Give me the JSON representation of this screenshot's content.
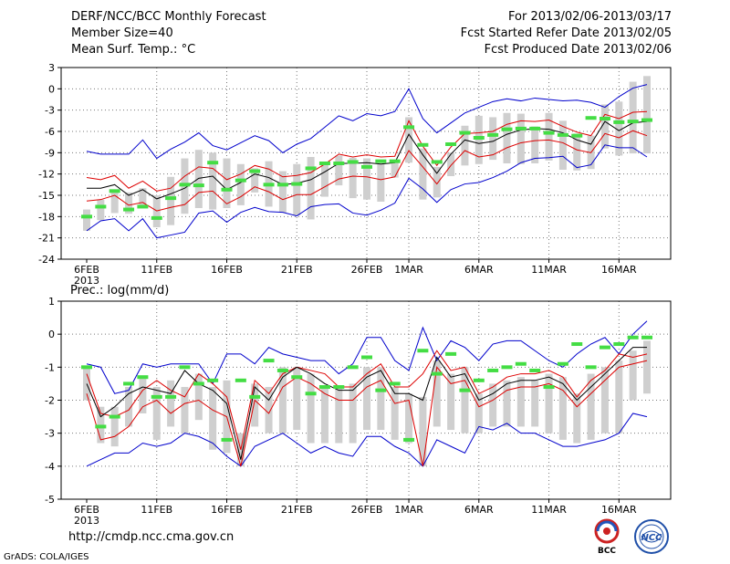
{
  "header": {
    "title": "DERF/NCC/BCC Monthly Forecast",
    "member_size": "Member Size=40",
    "variable": "Mean Surf. Temp.: °C",
    "period": "For 2013/02/06-2013/03/17",
    "start_date": "Fcst Started Refer Date 2013/02/05",
    "produced_date": "Fcst Produced Date 2013/02/06"
  },
  "footer": {
    "url": "http://cmdp.ncc.cma.gov.cn",
    "credit": "GrADS: COLA/IGES",
    "logo_bcc": "BCC",
    "logo_ncc": "NCC"
  },
  "colors": {
    "median": "#000000",
    "band": "#dd0000",
    "envelope": "#0000cc",
    "box": "#cfcfcf",
    "obs": "#44dd44",
    "grid": "#777777"
  },
  "chart_data": [
    {
      "type": "line",
      "title": "Mean Surf. Temp.: °C",
      "ylim": [
        -24,
        3
      ],
      "yticks": [
        3,
        0,
        -3,
        -6,
        -9,
        -12,
        -15,
        -18,
        -21,
        -24
      ],
      "xticks": [
        {
          "day": 0,
          "label": "6FEB",
          "sub": "2013"
        },
        {
          "day": 5,
          "label": "11FEB"
        },
        {
          "day": 10,
          "label": "16FEB"
        },
        {
          "day": 15,
          "label": "21FEB"
        },
        {
          "day": 20,
          "label": "26FEB"
        },
        {
          "day": 23,
          "label": "1MAR"
        },
        {
          "day": 28,
          "label": "6MAR"
        },
        {
          "day": 33,
          "label": "11MAR"
        },
        {
          "day": 38,
          "label": "16MAR"
        }
      ],
      "series": [
        {
          "name": "max",
          "values": [
            -8.8,
            -9.2,
            -9.2,
            -9.2,
            -7.2,
            -9.8,
            -8.5,
            -7.5,
            -6.2,
            -8.0,
            -8.6,
            -7.6,
            -6.6,
            -7.3,
            -9.0,
            -7.8,
            -7.0,
            -5.4,
            -3.8,
            -4.5,
            -3.5,
            -3.8,
            -3.2,
            0.0,
            -4.2,
            -6.2,
            -4.8,
            -3.4,
            -2.6,
            -1.8,
            -1.4,
            -1.7,
            -1.3,
            -1.5,
            -1.7,
            -1.6,
            -1.9,
            -2.6,
            -1.1,
            0.1,
            0.6
          ]
        },
        {
          "name": "upper",
          "values": [
            -12.5,
            -12.8,
            -12.2,
            -14.0,
            -13.0,
            -14.4,
            -14.0,
            -12.3,
            -11.0,
            -11.2,
            -12.8,
            -12.0,
            -10.8,
            -11.3,
            -12.4,
            -12.2,
            -11.8,
            -10.6,
            -9.2,
            -9.6,
            -9.3,
            -9.6,
            -9.5,
            -4.5,
            -8.1,
            -10.8,
            -8.2,
            -6.3,
            -6.2,
            -6.0,
            -5.0,
            -4.5,
            -4.6,
            -4.4,
            -5.3,
            -6.1,
            -6.6,
            -3.6,
            -4.2,
            -3.3,
            -3.2
          ]
        },
        {
          "name": "median",
          "values": [
            -14.0,
            -14.0,
            -13.5,
            -15.0,
            -14.2,
            -15.5,
            -14.8,
            -14.0,
            -12.6,
            -12.3,
            -14.2,
            -13.2,
            -12.0,
            -12.5,
            -13.5,
            -13.3,
            -12.8,
            -11.7,
            -10.5,
            -10.5,
            -10.4,
            -10.6,
            -10.4,
            -6.4,
            -9.3,
            -11.9,
            -9.2,
            -7.2,
            -7.7,
            -7.4,
            -6.4,
            -5.8,
            -5.6,
            -5.7,
            -6.2,
            -7.2,
            -7.8,
            -4.6,
            -5.9,
            -4.8,
            -4.6
          ]
        },
        {
          "name": "lower",
          "values": [
            -15.8,
            -15.6,
            -15.0,
            -16.4,
            -16.0,
            -17.2,
            -16.7,
            -16.3,
            -14.6,
            -14.4,
            -16.2,
            -15.2,
            -13.8,
            -14.5,
            -15.6,
            -14.9,
            -14.9,
            -13.8,
            -12.7,
            -12.3,
            -12.4,
            -12.8,
            -12.4,
            -8.7,
            -11.0,
            -13.4,
            -10.8,
            -8.7,
            -9.6,
            -9.3,
            -8.3,
            -7.6,
            -7.3,
            -7.2,
            -7.6,
            -8.6,
            -9.0,
            -6.3,
            -6.9,
            -5.9,
            -6.6
          ]
        },
        {
          "name": "min",
          "values": [
            -20.0,
            -18.6,
            -18.3,
            -20.0,
            -18.3,
            -21.0,
            -20.6,
            -20.2,
            -17.5,
            -17.2,
            -18.8,
            -17.4,
            -16.7,
            -17.3,
            -17.4,
            -17.9,
            -16.6,
            -16.3,
            -16.2,
            -17.5,
            -17.8,
            -17.1,
            -16.1,
            -12.6,
            -14.1,
            -16.0,
            -14.2,
            -13.4,
            -13.2,
            -12.5,
            -11.6,
            -10.4,
            -9.8,
            -9.7,
            -9.5,
            -11.1,
            -10.7,
            -7.9,
            -8.3,
            -8.3,
            -9.6
          ]
        },
        {
          "name": "box_top",
          "values": [
            -17.0,
            -15.6,
            -14.6,
            -14.6,
            -14.0,
            -15.0,
            -12.4,
            -9.8,
            -8.6,
            -9.0,
            -9.8,
            -10.6,
            -11.2,
            -10.2,
            -11.6,
            -10.6,
            -9.6,
            -10.3,
            -9.4,
            -9.7,
            -9.8,
            -10.6,
            -10.4,
            -4.0,
            -8.4,
            -11.0,
            -9.0,
            -5.2,
            -3.8,
            -4.0,
            -3.4,
            -3.5,
            -5.3,
            -3.4,
            -4.5,
            -6.3,
            -6.6,
            -2.2,
            -1.8,
            1.0,
            1.8
          ]
        },
        {
          "name": "box_bottom",
          "values": [
            -20.0,
            -18.5,
            -17.5,
            -17.6,
            -16.8,
            -19.5,
            -19.2,
            -17.6,
            -16.8,
            -17.0,
            -16.8,
            -16.4,
            -14.6,
            -16.6,
            -17.4,
            -17.8,
            -18.4,
            -15.2,
            -13.6,
            -15.4,
            -15.6,
            -15.9,
            -12.5,
            -10.4,
            -15.6,
            -15.3,
            -12.3,
            -10.8,
            -10.6,
            -10.0,
            -10.5,
            -10.6,
            -10.5,
            -10.1,
            -11.4,
            -11.5,
            -11.3,
            -8.4,
            -9.4,
            -9.1,
            -9.1
          ]
        },
        {
          "name": "observed",
          "values": [
            -18.0,
            -16.6,
            -14.4,
            -17.0,
            -16.6,
            -18.2,
            -15.4,
            -13.5,
            -13.6,
            -10.4,
            -14.2,
            -12.9,
            -11.6,
            -13.5,
            -13.5,
            -13.4,
            -11.2,
            -10.5,
            -10.5,
            -10.3,
            -11.0,
            -10.2,
            -10.2,
            -5.4,
            -7.9,
            -10.3,
            -7.8,
            -6.2,
            -6.9,
            -6.5,
            -5.7,
            -5.6,
            -5.6,
            -6.2,
            -6.5,
            -6.6,
            -4.1,
            -4.2,
            -4.7,
            -4.6,
            -4.4
          ]
        }
      ]
    },
    {
      "type": "line",
      "title": "Prec.: log(mm/d)",
      "ylim": [
        -5,
        1
      ],
      "yticks": [
        1,
        0,
        -1,
        -2,
        -3,
        -4,
        -5
      ],
      "xticks": [
        {
          "day": 0,
          "label": "6FEB",
          "sub": "2013"
        },
        {
          "day": 5,
          "label": "11FEB"
        },
        {
          "day": 10,
          "label": "16FEB"
        },
        {
          "day": 15,
          "label": "21FEB"
        },
        {
          "day": 20,
          "label": "26FEB"
        },
        {
          "day": 23,
          "label": "1MAR"
        },
        {
          "day": 28,
          "label": "6MAR"
        },
        {
          "day": 33,
          "label": "11MAR"
        },
        {
          "day": 38,
          "label": "16MAR"
        }
      ],
      "series": [
        {
          "name": "max",
          "values": [
            -0.9,
            -1.0,
            -1.8,
            -1.7,
            -0.9,
            -1.0,
            -0.9,
            -0.9,
            -0.9,
            -1.5,
            -0.6,
            -0.6,
            -0.9,
            -0.4,
            -0.6,
            -0.7,
            -0.8,
            -0.8,
            -1.2,
            -0.9,
            -0.1,
            -0.1,
            -0.8,
            -1.1,
            0.2,
            -0.8,
            -0.2,
            -0.4,
            -0.8,
            -0.3,
            -0.2,
            -0.2,
            -0.5,
            -0.8,
            -1.0,
            -0.6,
            -0.3,
            -0.1,
            -0.6,
            0.0,
            0.4
          ]
        },
        {
          "name": "upper",
          "values": [
            -1.2,
            -2.4,
            -2.5,
            -2.3,
            -1.7,
            -1.4,
            -1.7,
            -1.9,
            -1.2,
            -1.5,
            -1.9,
            -3.5,
            -1.4,
            -1.8,
            -1.2,
            -1.0,
            -1.1,
            -1.2,
            -1.6,
            -1.6,
            -1.2,
            -0.9,
            -1.6,
            -1.6,
            -1.2,
            -0.5,
            -1.1,
            -1.0,
            -1.8,
            -1.6,
            -1.3,
            -1.2,
            -1.2,
            -1.1,
            -1.3,
            -1.9,
            -1.4,
            -1.1,
            -0.6,
            -0.7,
            -0.6
          ]
        },
        {
          "name": "median",
          "values": [
            -1.5,
            -2.5,
            -2.2,
            -1.8,
            -1.6,
            -1.7,
            -1.8,
            -1.1,
            -1.5,
            -1.7,
            -2.1,
            -3.8,
            -1.6,
            -2.0,
            -1.3,
            -1.0,
            -1.2,
            -1.5,
            -1.7,
            -1.7,
            -1.3,
            -1.1,
            -1.8,
            -1.8,
            -2.0,
            -0.7,
            -1.3,
            -1.2,
            -2.0,
            -1.8,
            -1.5,
            -1.4,
            -1.4,
            -1.3,
            -1.5,
            -2.0,
            -1.6,
            -1.2,
            -0.8,
            -0.4,
            -0.4
          ]
        },
        {
          "name": "lower",
          "values": [
            -1.8,
            -3.2,
            -3.1,
            -2.8,
            -2.2,
            -2.0,
            -2.4,
            -2.1,
            -2.0,
            -2.3,
            -2.5,
            -4.0,
            -2.0,
            -2.4,
            -1.6,
            -1.3,
            -1.5,
            -1.8,
            -2.0,
            -2.0,
            -1.6,
            -1.4,
            -2.1,
            -2.0,
            -4.0,
            -1.0,
            -1.5,
            -1.4,
            -2.2,
            -2.0,
            -1.7,
            -1.6,
            -1.6,
            -1.5,
            -1.7,
            -2.2,
            -1.8,
            -1.4,
            -1.0,
            -0.9,
            -0.8
          ]
        },
        {
          "name": "min",
          "values": [
            -4.0,
            -3.8,
            -3.6,
            -3.6,
            -3.3,
            -3.4,
            -3.3,
            -3.0,
            -3.1,
            -3.3,
            -3.7,
            -4.0,
            -3.4,
            -3.2,
            -3.0,
            -3.3,
            -3.6,
            -3.4,
            -3.6,
            -3.7,
            -3.1,
            -3.1,
            -3.4,
            -3.6,
            -4.0,
            -3.2,
            -3.4,
            -3.6,
            -2.8,
            -2.9,
            -2.7,
            -3.0,
            -3.0,
            -3.2,
            -3.4,
            -3.4,
            -3.3,
            -3.2,
            -3.0,
            -2.4,
            -2.5
          ]
        },
        {
          "name": "box_top",
          "values": [
            -1.0,
            -2.2,
            -2.2,
            -1.6,
            -1.3,
            -1.6,
            -1.4,
            -1.6,
            -1.2,
            -1.6,
            -1.4,
            -3.0,
            -1.5,
            -1.6,
            -1.0,
            -1.0,
            -1.2,
            -1.6,
            -1.6,
            -1.5,
            -1.0,
            -1.0,
            -1.6,
            -1.8,
            -1.9,
            -0.8,
            -1.2,
            -1.0,
            -1.8,
            -1.5,
            -1.4,
            -1.3,
            -1.4,
            -1.2,
            -1.3,
            -1.8,
            -1.2,
            -1.0,
            -0.8,
            -0.5,
            -0.2
          ]
        },
        {
          "name": "box_bottom",
          "values": [
            -2.0,
            -3.3,
            -3.4,
            -2.8,
            -2.4,
            -3.2,
            -2.8,
            -3.0,
            -2.6,
            -3.5,
            -3.6,
            -4.0,
            -2.8,
            -3.0,
            -3.0,
            -2.9,
            -3.3,
            -3.3,
            -3.3,
            -3.3,
            -2.9,
            -2.9,
            -3.2,
            -3.3,
            -4.0,
            -2.8,
            -2.9,
            -3.0,
            -3.0,
            -2.8,
            -2.8,
            -2.8,
            -2.8,
            -3.0,
            -3.2,
            -3.3,
            -3.2,
            -3.0,
            -3.0,
            -2.0,
            -1.8
          ]
        },
        {
          "name": "observed",
          "values": [
            -1.0,
            -2.8,
            -2.5,
            -1.5,
            -1.3,
            -1.9,
            -1.9,
            -1.0,
            -1.5,
            -1.4,
            -3.2,
            -1.4,
            -1.9,
            -0.8,
            -1.1,
            -1.3,
            -1.8,
            -1.6,
            -1.6,
            -1.0,
            -0.7,
            -1.7,
            -1.5,
            -3.2,
            -0.5,
            -1.2,
            -0.6,
            -1.7,
            -1.4,
            -1.1,
            -1.0,
            -0.9,
            -1.1,
            -1.6,
            -0.9,
            -0.3,
            -1.0,
            -0.4,
            -0.3,
            -0.1,
            -0.1
          ]
        }
      ]
    }
  ]
}
